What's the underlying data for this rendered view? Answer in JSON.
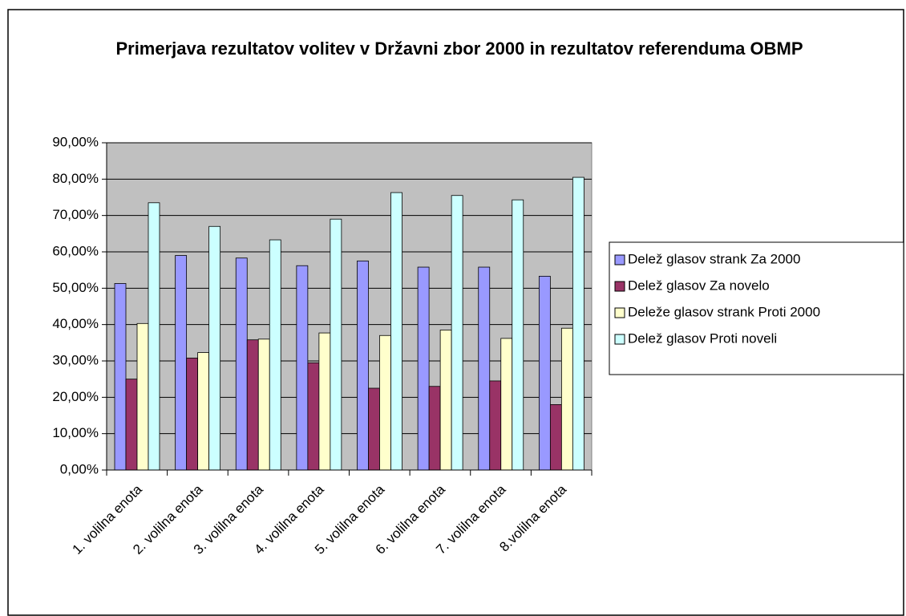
{
  "chart_data": {
    "type": "bar",
    "title": "Primerjava rezultatov volitev v Državni zbor 2000 in rezultatov referenduma OBMP",
    "categories": [
      "1. volilna enota",
      "2. volilna enota",
      "3. volilna enota",
      "4. volilna enota",
      "5. volilna enota",
      "6. volilna enota",
      "7. volilna enota",
      "8.volilna enota"
    ],
    "series": [
      {
        "name": "Delež glasov strank Za 2000",
        "color": "#9999ff",
        "values": [
          51.3,
          59,
          58.3,
          56.2,
          57.5,
          55.8,
          55.8,
          53.3
        ]
      },
      {
        "name": "Delež glasov Za novelo",
        "color": "#993366",
        "values": [
          25,
          30.8,
          35.8,
          29.5,
          22.5,
          23,
          24.5,
          18
        ]
      },
      {
        "name": "Deleže glasov strank Proti 2000",
        "color": "#ffffcc",
        "values": [
          40.3,
          32.3,
          36,
          37.7,
          37,
          38.5,
          36.2,
          39
        ]
      },
      {
        "name": "Delež glasov Proti noveli",
        "color": "#ccffff",
        "values": [
          73.5,
          67,
          63.3,
          69,
          76.3,
          75.5,
          74.3,
          80.5
        ]
      }
    ],
    "ylim": [
      0,
      90
    ],
    "yticks": [
      {
        "value": 0,
        "label": "0,00%"
      },
      {
        "value": 10,
        "label": "10,00%"
      },
      {
        "value": 20,
        "label": "20,00%"
      },
      {
        "value": 30,
        "label": "30,00%"
      },
      {
        "value": 40,
        "label": "40,00%"
      },
      {
        "value": 50,
        "label": "50,00%"
      },
      {
        "value": 60,
        "label": "60,00%"
      },
      {
        "value": 70,
        "label": "70,00%"
      },
      {
        "value": 80,
        "label": "80,00%"
      },
      {
        "value": 90,
        "label": "90,00%"
      }
    ],
    "grid": true,
    "plot_background": "#c0c0c0",
    "legend": "right"
  }
}
